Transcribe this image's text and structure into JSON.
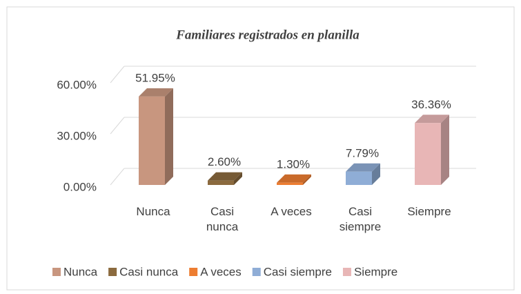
{
  "chart_data": {
    "type": "bar3d",
    "title": "Familiares registrados en planilla",
    "categories": [
      "Nunca",
      "Casi nunca",
      "A veces",
      "Casi siempre",
      "Siempre"
    ],
    "values": [
      51.95,
      2.6,
      1.3,
      7.79,
      36.36
    ],
    "value_labels": [
      "51.95%",
      "2.60%",
      "1.30%",
      "7.79%",
      "36.36%"
    ],
    "colors": [
      "#c8967f",
      "#8b6a3e",
      "#ed7d31",
      "#8fadd6",
      "#e8b6b6"
    ],
    "ylim": [
      0,
      60
    ],
    "yticks": [
      {
        "value": 0,
        "label": "0.00%"
      },
      {
        "value": 30,
        "label": "30.00%"
      },
      {
        "value": 60,
        "label": "60.00%"
      }
    ],
    "grid": true,
    "legend": "bottom"
  }
}
